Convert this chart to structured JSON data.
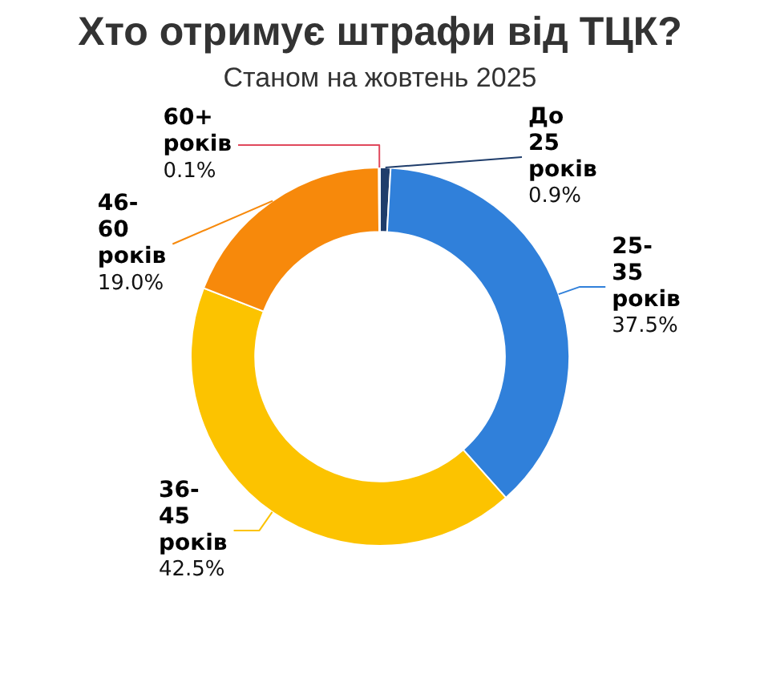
{
  "chart_data": {
    "type": "donut",
    "title": "Хто отримує штрафи від ТЦК?",
    "subtitle": "Станом на жовтень 2025",
    "categories": [
      "До 25 років",
      "25-35 років",
      "36-45 років",
      "46-60 років",
      "60+ років"
    ],
    "values": [
      0.9,
      37.5,
      42.5,
      19.0,
      0.1
    ],
    "colors": [
      "#1f3d6b",
      "#3080da",
      "#fcc300",
      "#f7890b",
      "#e0485c"
    ],
    "value_labels": [
      "0.9%",
      "37.5%",
      "42.5%",
      "19.0%",
      "0.1%"
    ]
  }
}
